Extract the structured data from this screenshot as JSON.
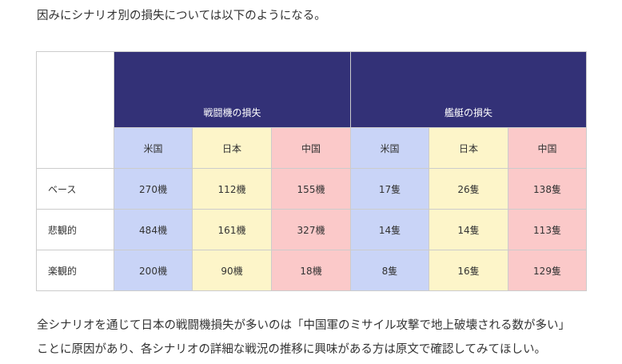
{
  "intro": "因みにシナリオ別の損失については以下のようになる。",
  "table": {
    "groups": [
      "戦闘機の損失",
      "艦艇の損失"
    ],
    "subheaders": [
      "米国",
      "日本",
      "中国",
      "米国",
      "日本",
      "中国"
    ],
    "rows": [
      {
        "label": "ベース",
        "cells": [
          "270機",
          "112機",
          "155機",
          "17隻",
          "26隻",
          "138隻"
        ]
      },
      {
        "label": "悲観的",
        "cells": [
          "484機",
          "161機",
          "327機",
          "14隻",
          "14隻",
          "113隻"
        ]
      },
      {
        "label": "楽観的",
        "cells": [
          "200機",
          "90機",
          "18機",
          "8隻",
          "16隻",
          "129隻"
        ]
      }
    ]
  },
  "outro": [
    "全シナリオを通じて日本の戦闘機損失が多いのは「中国軍のミサイル攻撃で地上破壊される数が多い」",
    "ことに原因があり、各シナリオの詳細な戦況の推移に興味がある方は原文で確認してみてほしい。"
  ]
}
